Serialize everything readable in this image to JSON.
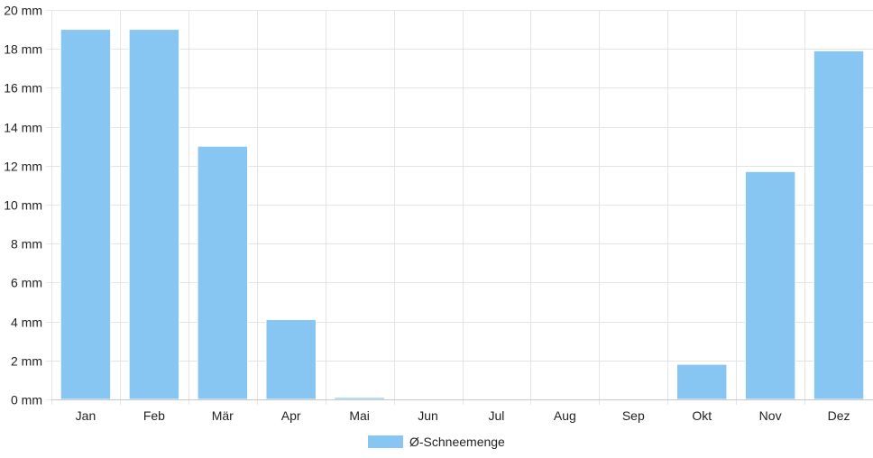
{
  "chart_data": {
    "type": "bar",
    "categories": [
      "Jan",
      "Feb",
      "Mär",
      "Apr",
      "Mai",
      "Jun",
      "Jul",
      "Aug",
      "Sep",
      "Okt",
      "Nov",
      "Dez"
    ],
    "series": [
      {
        "name": "Ø-Schneemenge",
        "values": [
          19.0,
          19.0,
          13.0,
          4.1,
          0.1,
          0,
          0,
          0,
          0,
          1.8,
          11.7,
          17.9
        ]
      }
    ],
    "unit": "mm",
    "ylim": [
      0,
      20
    ],
    "y_ticks": [
      0,
      2,
      4,
      6,
      8,
      10,
      12,
      14,
      16,
      18,
      20
    ],
    "y_tick_labels": [
      "0 mm",
      "2 mm",
      "4 mm",
      "6 mm",
      "8 mm",
      "10 mm",
      "12 mm",
      "14 mm",
      "16 mm",
      "18 mm",
      "20 mm"
    ],
    "grid": true,
    "legend_position": "bottom-center",
    "colors": {
      "bar_fill": "#87c5f2",
      "bar_stroke": "#ffffff",
      "grid": "#e4e4e4",
      "axis": "#c8c8c8",
      "text": "#222222"
    }
  }
}
